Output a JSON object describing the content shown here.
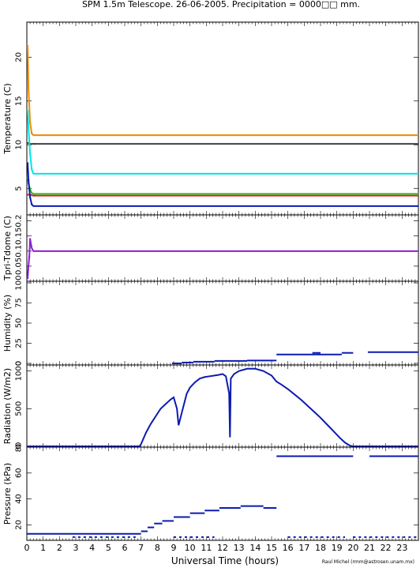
{
  "title": "SPM 1.5m Telescope. 26-06-2005. Precipitation = 0000□□ mm.",
  "xlabel": "Universal Time (hours)",
  "credit": "Raul Michel (rmm@astrosen.unam.mx)",
  "colors": {
    "orange": "#f08a00",
    "dark": "#404040",
    "cyan": "#00e5e5",
    "green": "#1ec81e",
    "red": "#dd2222",
    "blue": "#0b1bb0",
    "purple": "#8a1fd8"
  },
  "x_ticks": [
    "0",
    "1",
    "2",
    "3",
    "4",
    "5",
    "6",
    "7",
    "8",
    "9",
    "10",
    "11",
    "12",
    "13",
    "14",
    "15",
    "16",
    "17",
    "18",
    "19",
    "20",
    "21",
    "22",
    "23"
  ],
  "chart_data": [
    {
      "type": "line",
      "ylabel": "Temperature (C)",
      "ylim": [
        2,
        24
      ],
      "xlim": [
        0,
        24
      ],
      "yticks": [
        "5",
        "10",
        "15",
        "20"
      ],
      "ytick_values": [
        5,
        10,
        15,
        20
      ],
      "series": [
        {
          "color": "orange",
          "x": [
            0.05,
            0.1,
            0.2,
            0.3,
            0.4,
            0.5,
            24
          ],
          "y": [
            21.3,
            16.5,
            12.5,
            11.3,
            11.1,
            11.1,
            11.1
          ]
        },
        {
          "color": "dark",
          "x": [
            0.05,
            0.2,
            0.4,
            0.5,
            24
          ],
          "y": [
            10.2,
            10.1,
            10.1,
            10.1,
            10.1
          ]
        },
        {
          "color": "cyan",
          "x": [
            0.05,
            0.1,
            0.2,
            0.3,
            0.4,
            0.5,
            24
          ],
          "y": [
            13.9,
            12.0,
            9.0,
            7.2,
            6.7,
            6.7,
            6.7
          ]
        },
        {
          "color": "green",
          "x": [
            0.05,
            0.1,
            0.2,
            0.3,
            0.4,
            0.5,
            24
          ],
          "y": [
            6.2,
            5.6,
            4.9,
            4.5,
            4.4,
            4.4,
            4.4
          ]
        },
        {
          "color": "red",
          "x": [
            0.05,
            0.2,
            0.4,
            0.5,
            24
          ],
          "y": [
            4.3,
            4.3,
            4.2,
            4.2,
            4.2
          ]
        },
        {
          "color": "blue",
          "x": [
            0.05,
            0.1,
            0.2,
            0.3,
            0.4,
            0.5,
            24
          ],
          "y": [
            7.9,
            6.0,
            4.0,
            3.2,
            3.0,
            3.0,
            3.0
          ]
        }
      ]
    },
    {
      "type": "line",
      "ylabel": "Tpri-Tdome (C)",
      "ylim": [
        0,
        0.22
      ],
      "xlim": [
        0,
        24
      ],
      "yticks": [
        "0.05",
        "0.1",
        "0.15",
        "0.2"
      ],
      "ytick_values": [
        0.05,
        0.1,
        0.15,
        0.2
      ],
      "series": [
        {
          "color": "purple",
          "x": [
            0.05,
            0.1,
            0.15,
            0.2,
            0.3,
            0.4,
            0.5,
            24
          ],
          "y": [
            0.01,
            0.05,
            0.08,
            0.14,
            0.11,
            0.1,
            0.1,
            0.1
          ]
        }
      ]
    },
    {
      "type": "scatter",
      "ylabel": "Humidity (%)",
      "ylim": [
        -2,
        102
      ],
      "xlim": [
        0,
        24
      ],
      "yticks": [
        "0",
        "25",
        "50",
        "75",
        "100"
      ],
      "ytick_values": [
        0,
        25,
        50,
        75,
        100
      ],
      "segments": [
        {
          "x": [
            8.9,
            9.5
          ],
          "y": 0
        },
        {
          "x": [
            9.5,
            10.2
          ],
          "y": 1
        },
        {
          "x": [
            10.2,
            11.5
          ],
          "y": 2
        },
        {
          "x": [
            11.5,
            13.5
          ],
          "y": 3
        },
        {
          "x": [
            13.5,
            15.3
          ],
          "y": 3.5
        },
        {
          "x": [
            15.3,
            17.7
          ],
          "y": 11
        },
        {
          "x": [
            17.5,
            18.0
          ],
          "y": 13
        },
        {
          "x": [
            17.7,
            19.3
          ],
          "y": 11
        },
        {
          "x": [
            19.3,
            20.0
          ],
          "y": 13
        },
        {
          "x": [
            20.9,
            24
          ],
          "y": 14
        }
      ]
    },
    {
      "type": "line",
      "ylabel": "Radiation (W/m2)",
      "ylim": [
        -10,
        1080
      ],
      "xlim": [
        0,
        24
      ],
      "yticks": [
        "0",
        "500",
        "1000"
      ],
      "ytick_values": [
        0,
        500,
        1000
      ],
      "x": [
        0,
        6.9,
        7.0,
        7.3,
        7.6,
        7.9,
        8.2,
        8.5,
        8.8,
        9.0,
        9.2,
        9.3,
        9.5,
        9.8,
        10.0,
        10.3,
        10.6,
        10.9,
        11.2,
        11.5,
        11.8,
        12.0,
        12.2,
        12.4,
        12.45,
        12.5,
        12.7,
        13.0,
        13.5,
        14.0,
        14.5,
        15.0,
        15.3,
        15.6,
        16.0,
        16.4,
        16.8,
        17.2,
        17.6,
        18.0,
        18.4,
        18.8,
        19.2,
        19.5,
        19.8,
        20.0,
        24
      ],
      "y": [
        0,
        0,
        30,
        180,
        300,
        400,
        500,
        560,
        620,
        650,
        500,
        280,
        450,
        700,
        780,
        850,
        900,
        920,
        930,
        940,
        950,
        960,
        930,
        700,
        120,
        900,
        960,
        1000,
        1030,
        1030,
        1000,
        940,
        860,
        820,
        760,
        690,
        620,
        540,
        460,
        380,
        290,
        200,
        110,
        50,
        10,
        0,
        0
      ]
    },
    {
      "type": "scatter",
      "ylabel": "Pressure (kPa)",
      "ylim": [
        8,
        80
      ],
      "xlim": [
        0,
        24
      ],
      "yticks": [
        "20",
        "40",
        "60",
        "80"
      ],
      "ytick_values": [
        20,
        40,
        60,
        80
      ],
      "segments": [
        {
          "x": [
            0,
            7.0
          ],
          "y": 13
        },
        {
          "x": [
            7.0,
            7.4
          ],
          "y": 15
        },
        {
          "x": [
            7.4,
            7.8
          ],
          "y": 18
        },
        {
          "x": [
            7.8,
            8.3
          ],
          "y": 21
        },
        {
          "x": [
            8.3,
            9.0
          ],
          "y": 23
        },
        {
          "x": [
            9.0,
            10.0
          ],
          "y": 26
        },
        {
          "x": [
            10.0,
            10.9
          ],
          "y": 29
        },
        {
          "x": [
            10.9,
            11.8
          ],
          "y": 31
        },
        {
          "x": [
            11.8,
            13.1
          ],
          "y": 33
        },
        {
          "x": [
            13.1,
            14.5
          ],
          "y": 34.5
        },
        {
          "x": [
            14.5,
            15.3
          ],
          "y": 33
        },
        {
          "x": [
            15.3,
            20.0
          ],
          "y": 73
        },
        {
          "x": [
            21.0,
            24
          ],
          "y": 73
        },
        {
          "x": [
            2.8,
            6.8
          ],
          "y": 10.5
        },
        {
          "x": [
            9.0,
            11.5
          ],
          "y": 10.5
        },
        {
          "x": [
            16.0,
            19.5
          ],
          "y": 10.5
        },
        {
          "x": [
            20.0,
            24
          ],
          "y": 10.5
        }
      ]
    }
  ]
}
